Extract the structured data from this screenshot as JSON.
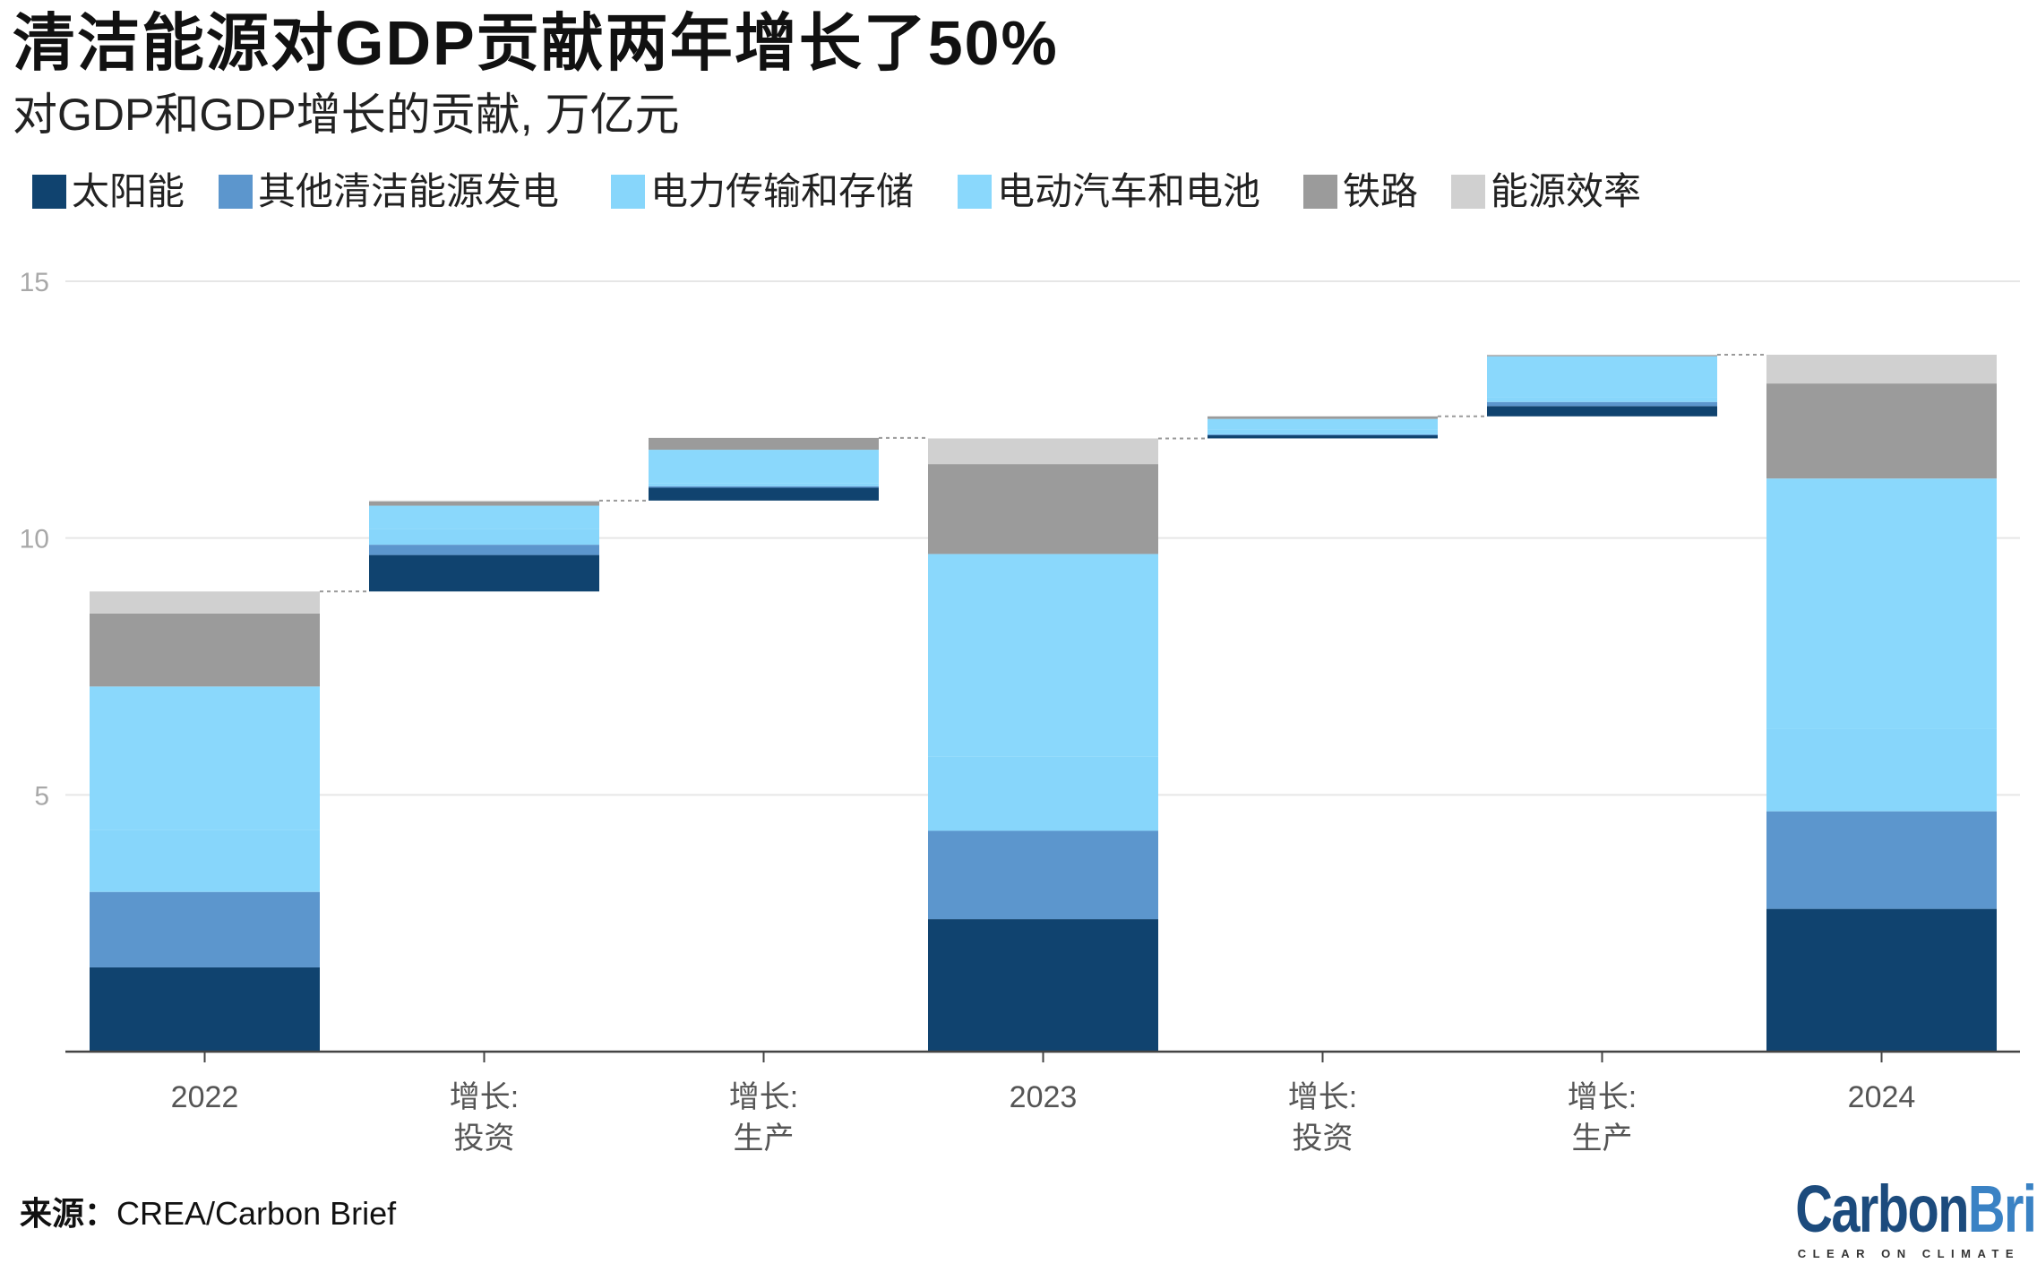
{
  "chart_data": {
    "type": "bar",
    "title": "清洁能源对GDP贡献两年增长了50%",
    "subtitle": "对GDP和GDP增长的贡献, 万亿元",
    "xlabel": "",
    "ylabel": "",
    "ylim": [
      0,
      15
    ],
    "yticks": [
      5,
      10,
      15
    ],
    "grid": true,
    "legend_position": "top",
    "categories": [
      {
        "is_increment": false,
        "lines": [
          "2022"
        ]
      },
      {
        "is_increment": true,
        "lines": [
          "增长:",
          "投资"
        ]
      },
      {
        "is_increment": true,
        "lines": [
          "增长:",
          "生产"
        ]
      },
      {
        "is_increment": false,
        "lines": [
          "2023"
        ]
      },
      {
        "is_increment": true,
        "lines": [
          "增长:",
          "投资"
        ]
      },
      {
        "is_increment": true,
        "lines": [
          "增长:",
          "生产"
        ]
      },
      {
        "is_increment": false,
        "lines": [
          "2024"
        ]
      }
    ],
    "series": [
      {
        "name": "太阳能",
        "color": "#10436f",
        "values": [
          1.64,
          0.71,
          0.25,
          2.58,
          0.06,
          0.2,
          2.78
        ]
      },
      {
        "name": "其他清洁能源发电",
        "color": "#5c96cd",
        "values": [
          1.47,
          0.2,
          0.03,
          1.72,
          0.02,
          0.08,
          1.9
        ]
      },
      {
        "name": "电力传输和存储",
        "color": "#87d6fb",
        "values": [
          1.2,
          0.3,
          0.06,
          1.45,
          0.1,
          0.09,
          1.6
        ]
      },
      {
        "name": "电动汽车和电池",
        "color": "#8ad8fc",
        "values": [
          2.8,
          0.46,
          0.65,
          3.94,
          0.2,
          0.8,
          4.88
        ]
      },
      {
        "name": "铁路",
        "color": "#9b9b9b",
        "values": [
          1.42,
          0.08,
          0.23,
          1.75,
          0.05,
          0.02,
          1.85
        ]
      },
      {
        "name": "能源效率",
        "color": "#d0d0d0",
        "values": [
          0.43,
          0.02,
          0.0,
          0.5,
          0.0,
          0.01,
          0.56
        ]
      }
    ]
  },
  "source": {
    "label": "来源：",
    "text": "CREA/Carbon Brief"
  },
  "logo": {
    "carbon": "Carbon",
    "brief": "Brief",
    "tagline": "CLEAR ON CLIMATE"
  },
  "colors": {
    "logo_carbon": "#1c4b7d",
    "logo_brief": "#3a82c4",
    "gridline": "#e6e6e6",
    "axis": "#444444",
    "connector": "#9a9a9a"
  }
}
